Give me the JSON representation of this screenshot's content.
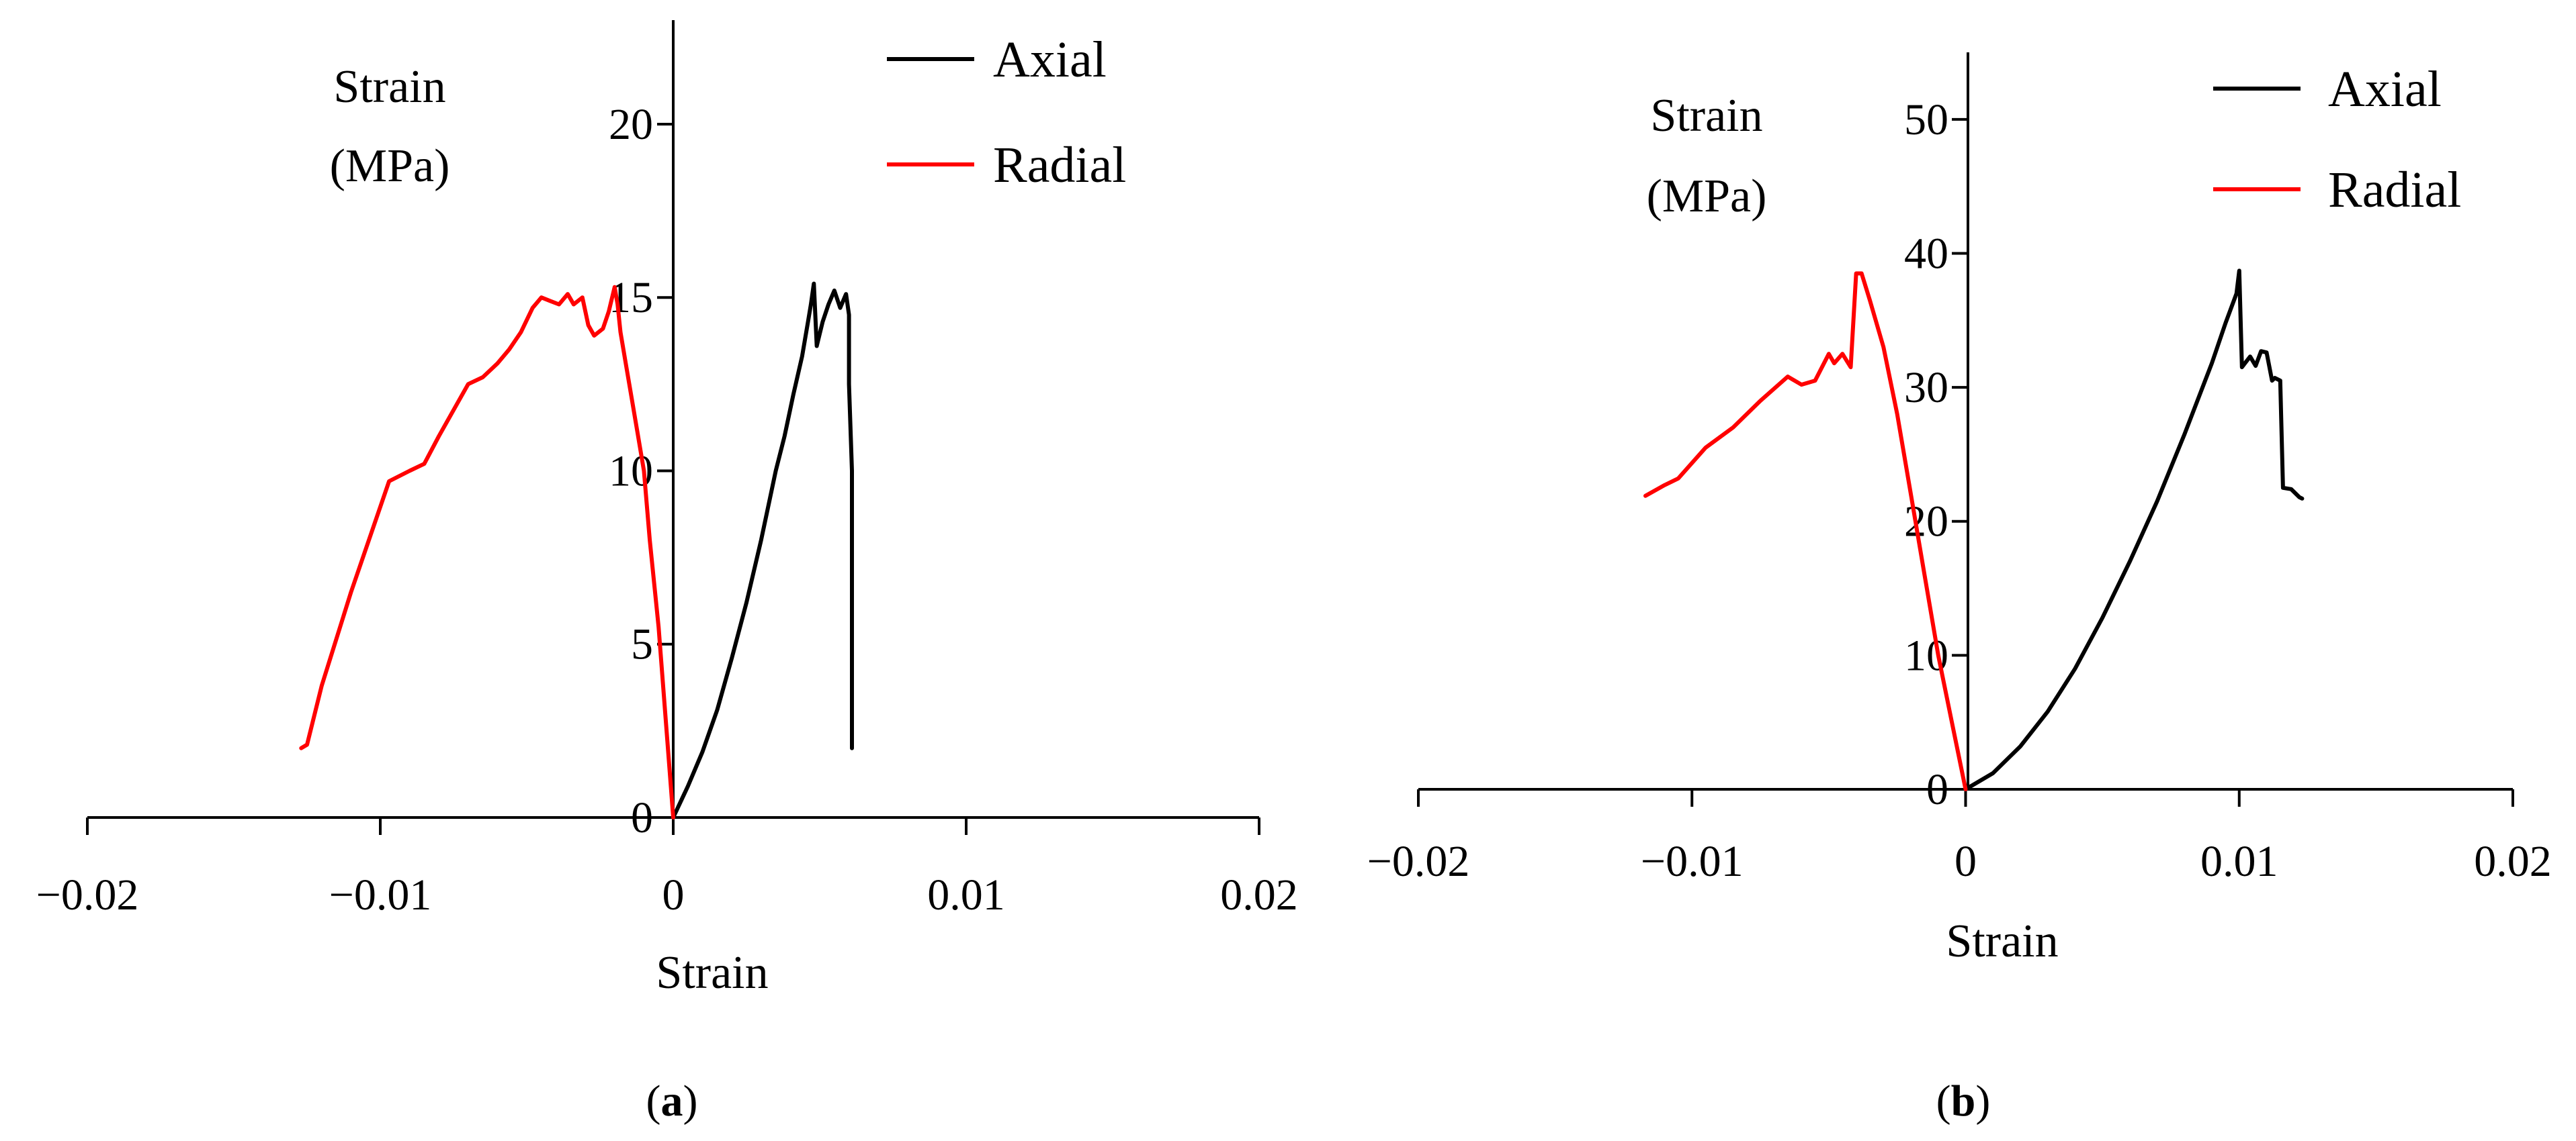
{
  "colors": {
    "axial": "#000000",
    "radial": "#ff0000",
    "axis": "#000000"
  },
  "chart_data": [
    {
      "type": "line",
      "panel_label": "a",
      "xlabel": "Strain",
      "ylabel_line1": "Strain",
      "ylabel_line2": "(MPa)",
      "xlim": [
        -0.02,
        0.02
      ],
      "ylim": [
        0,
        23
      ],
      "xticks": [
        -0.02,
        -0.01,
        0,
        0.01,
        0.02
      ],
      "xtick_labels": [
        "−0.02",
        "−0.01",
        "0",
        "0.01",
        "0.02"
      ],
      "yticks": [
        5,
        10,
        15,
        20
      ],
      "ytick_labels": [
        "5",
        "10",
        "15",
        "20"
      ],
      "origin_label": "0",
      "legend_position": "top-right",
      "grid": false,
      "series": [
        {
          "name": "Axial",
          "color": "#000000",
          "points": [
            [
              0,
              0
            ],
            [
              0.0005,
              0.9
            ],
            [
              0.001,
              1.9
            ],
            [
              0.0015,
              3.1
            ],
            [
              0.002,
              4.6
            ],
            [
              0.0025,
              6.2
            ],
            [
              0.003,
              8.0
            ],
            [
              0.0035,
              10.0
            ],
            [
              0.0038,
              11.0
            ],
            [
              0.0041,
              12.2
            ],
            [
              0.0044,
              13.3
            ],
            [
              0.0046,
              14.3
            ],
            [
              0.0047,
              14.8
            ],
            [
              0.0048,
              15.4
            ],
            [
              0.0049,
              13.6
            ],
            [
              0.0051,
              14.3
            ],
            [
              0.0053,
              14.8
            ],
            [
              0.0055,
              15.2
            ],
            [
              0.0057,
              14.7
            ],
            [
              0.0059,
              15.1
            ],
            [
              0.006,
              14.5
            ],
            [
              0.006,
              12.5
            ],
            [
              0.0061,
              10.0
            ],
            [
              0.0061,
              2.0
            ]
          ]
        },
        {
          "name": "Radial",
          "color": "#ff0000",
          "points": [
            [
              0,
              0
            ],
            [
              -0.0002,
              2.2
            ],
            [
              -0.0005,
              5.5
            ],
            [
              -0.0008,
              8.0
            ],
            [
              -0.001,
              10.0
            ],
            [
              -0.0012,
              11.0
            ],
            [
              -0.0014,
              12.0
            ],
            [
              -0.0016,
              13.0
            ],
            [
              -0.0018,
              14.0
            ],
            [
              -0.0019,
              14.8
            ],
            [
              -0.002,
              15.3
            ],
            [
              -0.0022,
              14.6
            ],
            [
              -0.0024,
              14.1
            ],
            [
              -0.0027,
              13.9
            ],
            [
              -0.0029,
              14.2
            ],
            [
              -0.0031,
              15.0
            ],
            [
              -0.0034,
              14.8
            ],
            [
              -0.0036,
              15.1
            ],
            [
              -0.0039,
              14.8
            ],
            [
              -0.0042,
              14.9
            ],
            [
              -0.0045,
              15.0
            ],
            [
              -0.0048,
              14.7
            ],
            [
              -0.0052,
              14.0
            ],
            [
              -0.0056,
              13.5
            ],
            [
              -0.006,
              13.1
            ],
            [
              -0.0065,
              12.7
            ],
            [
              -0.007,
              12.5
            ],
            [
              -0.008,
              11.0
            ],
            [
              -0.0085,
              10.2
            ],
            [
              -0.009,
              10.0
            ],
            [
              -0.0097,
              9.7
            ],
            [
              -0.011,
              6.5
            ],
            [
              -0.012,
              3.8
            ],
            [
              -0.0125,
              2.1
            ],
            [
              -0.0127,
              2.0
            ]
          ]
        }
      ]
    },
    {
      "type": "line",
      "panel_label": "b",
      "xlabel": "Strain",
      "ylabel_line1": "Strain",
      "ylabel_line2": "(MPa)",
      "xlim": [
        -0.02,
        0.02
      ],
      "ylim": [
        0,
        55
      ],
      "xticks": [
        -0.02,
        -0.01,
        0,
        0.01,
        0.02
      ],
      "xtick_labels": [
        "−0.02",
        "−0.01",
        "0",
        "0.01",
        "0.02"
      ],
      "yticks": [
        10,
        20,
        30,
        40,
        50
      ],
      "ytick_labels": [
        "10",
        "20",
        "30",
        "40",
        "50"
      ],
      "origin_label": "0",
      "legend_position": "top-right",
      "grid": false,
      "series": [
        {
          "name": "Axial",
          "color": "#000000",
          "points": [
            [
              0,
              0
            ],
            [
              0.001,
              1.2
            ],
            [
              0.002,
              3.2
            ],
            [
              0.003,
              5.8
            ],
            [
              0.004,
              9.0
            ],
            [
              0.005,
              12.8
            ],
            [
              0.006,
              17.0
            ],
            [
              0.007,
              21.5
            ],
            [
              0.008,
              26.5
            ],
            [
              0.009,
              31.8
            ],
            [
              0.0095,
              34.8
            ],
            [
              0.0099,
              37.0
            ],
            [
              0.01,
              38.7
            ],
            [
              0.0101,
              31.5
            ],
            [
              0.0104,
              32.3
            ],
            [
              0.0106,
              31.6
            ],
            [
              0.0108,
              32.7
            ],
            [
              0.011,
              32.6
            ],
            [
              0.0112,
              30.5
            ],
            [
              0.0113,
              30.7
            ],
            [
              0.0115,
              30.5
            ],
            [
              0.0116,
              22.5
            ],
            [
              0.0119,
              22.4
            ],
            [
              0.0122,
              21.8
            ],
            [
              0.0123,
              21.7
            ]
          ]
        },
        {
          "name": "Radial",
          "color": "#ff0000",
          "points": [
            [
              0,
              0
            ],
            [
              -0.0005,
              5.0
            ],
            [
              -0.001,
              10.0
            ],
            [
              -0.0015,
              16.0
            ],
            [
              -0.002,
              22.0
            ],
            [
              -0.0025,
              28.0
            ],
            [
              -0.003,
              33.0
            ],
            [
              -0.0035,
              36.5
            ],
            [
              -0.0038,
              38.5
            ],
            [
              -0.004,
              38.5
            ],
            [
              -0.0042,
              31.5
            ],
            [
              -0.0045,
              32.5
            ],
            [
              -0.0048,
              31.8
            ],
            [
              -0.005,
              32.5
            ],
            [
              -0.0055,
              30.5
            ],
            [
              -0.006,
              30.2
            ],
            [
              -0.0065,
              30.8
            ],
            [
              -0.0075,
              29.0
            ],
            [
              -0.0085,
              27.0
            ],
            [
              -0.0095,
              25.5
            ],
            [
              -0.0105,
              23.2
            ],
            [
              -0.011,
              22.7
            ],
            [
              -0.0117,
              21.9
            ]
          ]
        }
      ]
    }
  ]
}
